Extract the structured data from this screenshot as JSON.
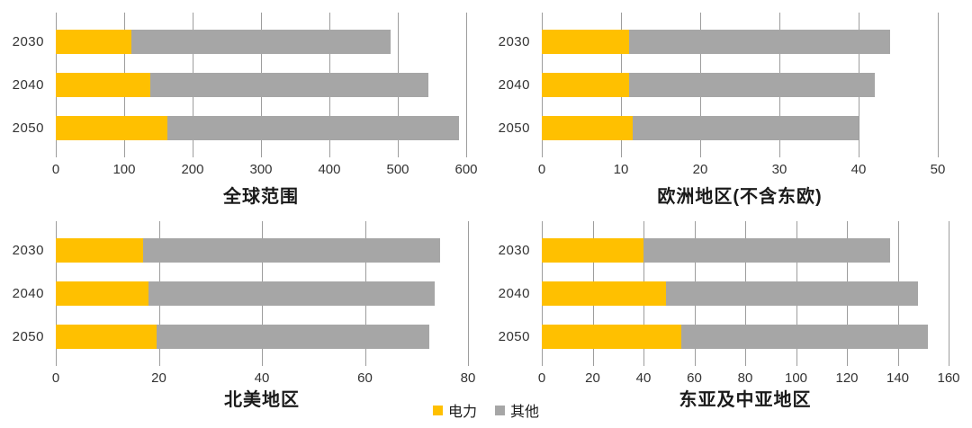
{
  "page": {
    "background": "#ffffff",
    "text_color": "#333333",
    "gridline_color": "#9d9d9d"
  },
  "legend": {
    "position": "bottom-center",
    "items": [
      {
        "key": "electricity",
        "label": "电力",
        "color": "#FFC000"
      },
      {
        "key": "other",
        "label": "其他",
        "color": "#A6A6A6"
      }
    ]
  },
  "chart_data": [
    {
      "type": "bar",
      "orientation": "horizontal",
      "stacked": true,
      "grid": true,
      "title": "全球范围",
      "categories": [
        "2030",
        "2040",
        "2050"
      ],
      "series": [
        {
          "key": "electricity",
          "name": "电力",
          "color": "#FFC000",
          "values": [
            110,
            138,
            163
          ]
        },
        {
          "key": "other",
          "name": "其他",
          "color": "#A6A6A6",
          "values": [
            380,
            407,
            427
          ]
        }
      ],
      "totals": [
        490,
        545,
        590
      ],
      "xlim": [
        0,
        600
      ],
      "xticks": [
        0,
        100,
        200,
        300,
        400,
        500,
        600
      ],
      "xlabel": "",
      "ylabel": ""
    },
    {
      "type": "bar",
      "orientation": "horizontal",
      "stacked": true,
      "grid": true,
      "title": "欧洲地区(不含东欧)",
      "categories": [
        "2030",
        "2040",
        "2050"
      ],
      "series": [
        {
          "key": "electricity",
          "name": "电力",
          "color": "#FFC000",
          "values": [
            11,
            11,
            11.5
          ]
        },
        {
          "key": "other",
          "name": "其他",
          "color": "#A6A6A6",
          "values": [
            33,
            31,
            28.5
          ]
        }
      ],
      "totals": [
        44,
        42,
        40
      ],
      "xlim": [
        0,
        50
      ],
      "xticks": [
        0,
        10,
        20,
        30,
        40,
        50
      ],
      "xlabel": "",
      "ylabel": ""
    },
    {
      "type": "bar",
      "orientation": "horizontal",
      "stacked": true,
      "grid": true,
      "title": "北美地区",
      "categories": [
        "2030",
        "2040",
        "2050"
      ],
      "series": [
        {
          "key": "electricity",
          "name": "电力",
          "color": "#FFC000",
          "values": [
            17,
            18,
            19.5
          ]
        },
        {
          "key": "other",
          "name": "其他",
          "color": "#A6A6A6",
          "values": [
            57.5,
            55.5,
            53
          ]
        }
      ],
      "totals": [
        74.5,
        73.5,
        72.5
      ],
      "xlim": [
        0,
        80
      ],
      "xticks": [
        0,
        20,
        40,
        60,
        80
      ],
      "xlabel": "",
      "ylabel": ""
    },
    {
      "type": "bar",
      "orientation": "horizontal",
      "stacked": true,
      "grid": true,
      "title": "东亚及中亚地区",
      "categories": [
        "2030",
        "2040",
        "2050"
      ],
      "series": [
        {
          "key": "electricity",
          "name": "电力",
          "color": "#FFC000",
          "values": [
            40,
            49,
            55
          ]
        },
        {
          "key": "other",
          "name": "其他",
          "color": "#A6A6A6",
          "values": [
            97,
            99,
            97
          ]
        }
      ],
      "totals": [
        137,
        148,
        152
      ],
      "xlim": [
        0,
        160
      ],
      "xticks": [
        0,
        20,
        40,
        60,
        80,
        100,
        120,
        140,
        160
      ],
      "xlabel": "",
      "ylabel": ""
    }
  ]
}
